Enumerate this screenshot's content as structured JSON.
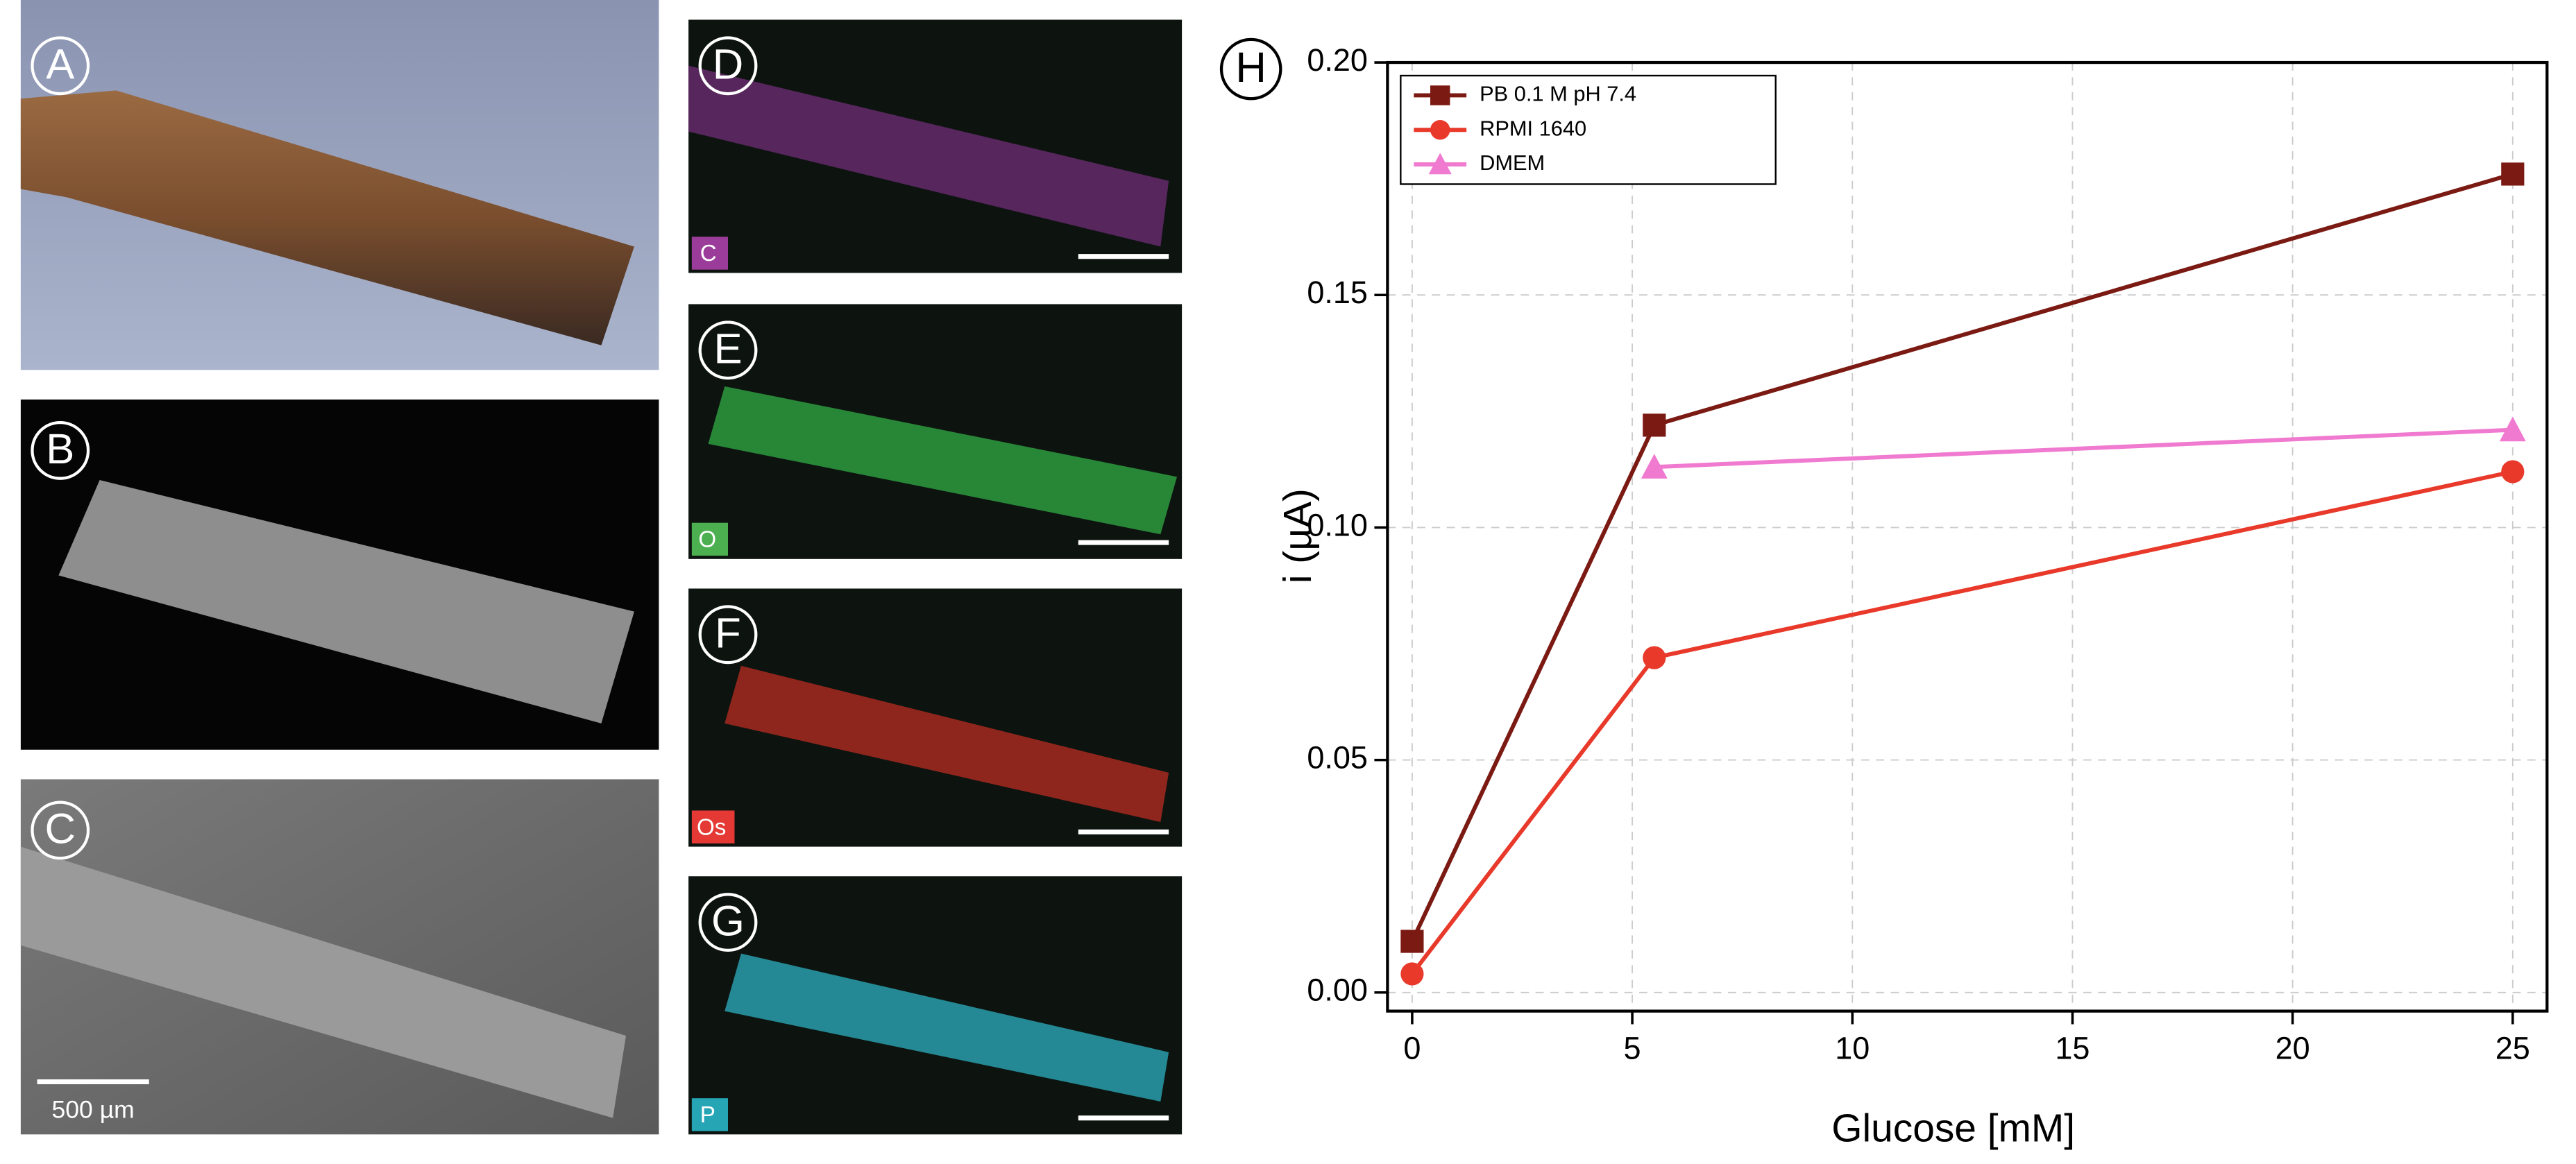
{
  "panels": [
    "A",
    "B",
    "C",
    "D",
    "E",
    "F",
    "G",
    "H"
  ],
  "element_maps": [
    "C",
    "O",
    "Os",
    "P"
  ],
  "scale_bar": "500 µm",
  "chart_data": {
    "type": "line",
    "x_label": "Glucose [mM]",
    "y_label": "i (µA)",
    "x": [
      0,
      5.5,
      25
    ],
    "series": [
      {
        "name": "PB 0.1 M pH 7.4",
        "color": "#7b1a12",
        "marker": "square",
        "values": [
          0.011,
          0.122,
          0.176
        ]
      },
      {
        "name": "RPMI 1640",
        "color": "#e8392a",
        "marker": "circle",
        "values": [
          0.004,
          0.072,
          0.112
        ]
      },
      {
        "name": "DMEM",
        "color": "#f07ad0",
        "marker": "triangle",
        "values": [
          null,
          0.113,
          0.121
        ]
      }
    ],
    "xlim": [
      -0.56,
      25.78
    ],
    "ylim": [
      -0.004,
      0.2
    ],
    "xticks": [
      0,
      5,
      10,
      15,
      20,
      25
    ],
    "yticks": [
      {
        "value": 0,
        "label": "0.00"
      },
      {
        "value": 0.05,
        "label": "0.05"
      },
      {
        "value": 0.1,
        "label": "0.10"
      },
      {
        "value": 0.15,
        "label": "0.15"
      },
      {
        "value": 0.2,
        "label": "0.20"
      }
    ],
    "grid": true,
    "legend": "top-left"
  }
}
